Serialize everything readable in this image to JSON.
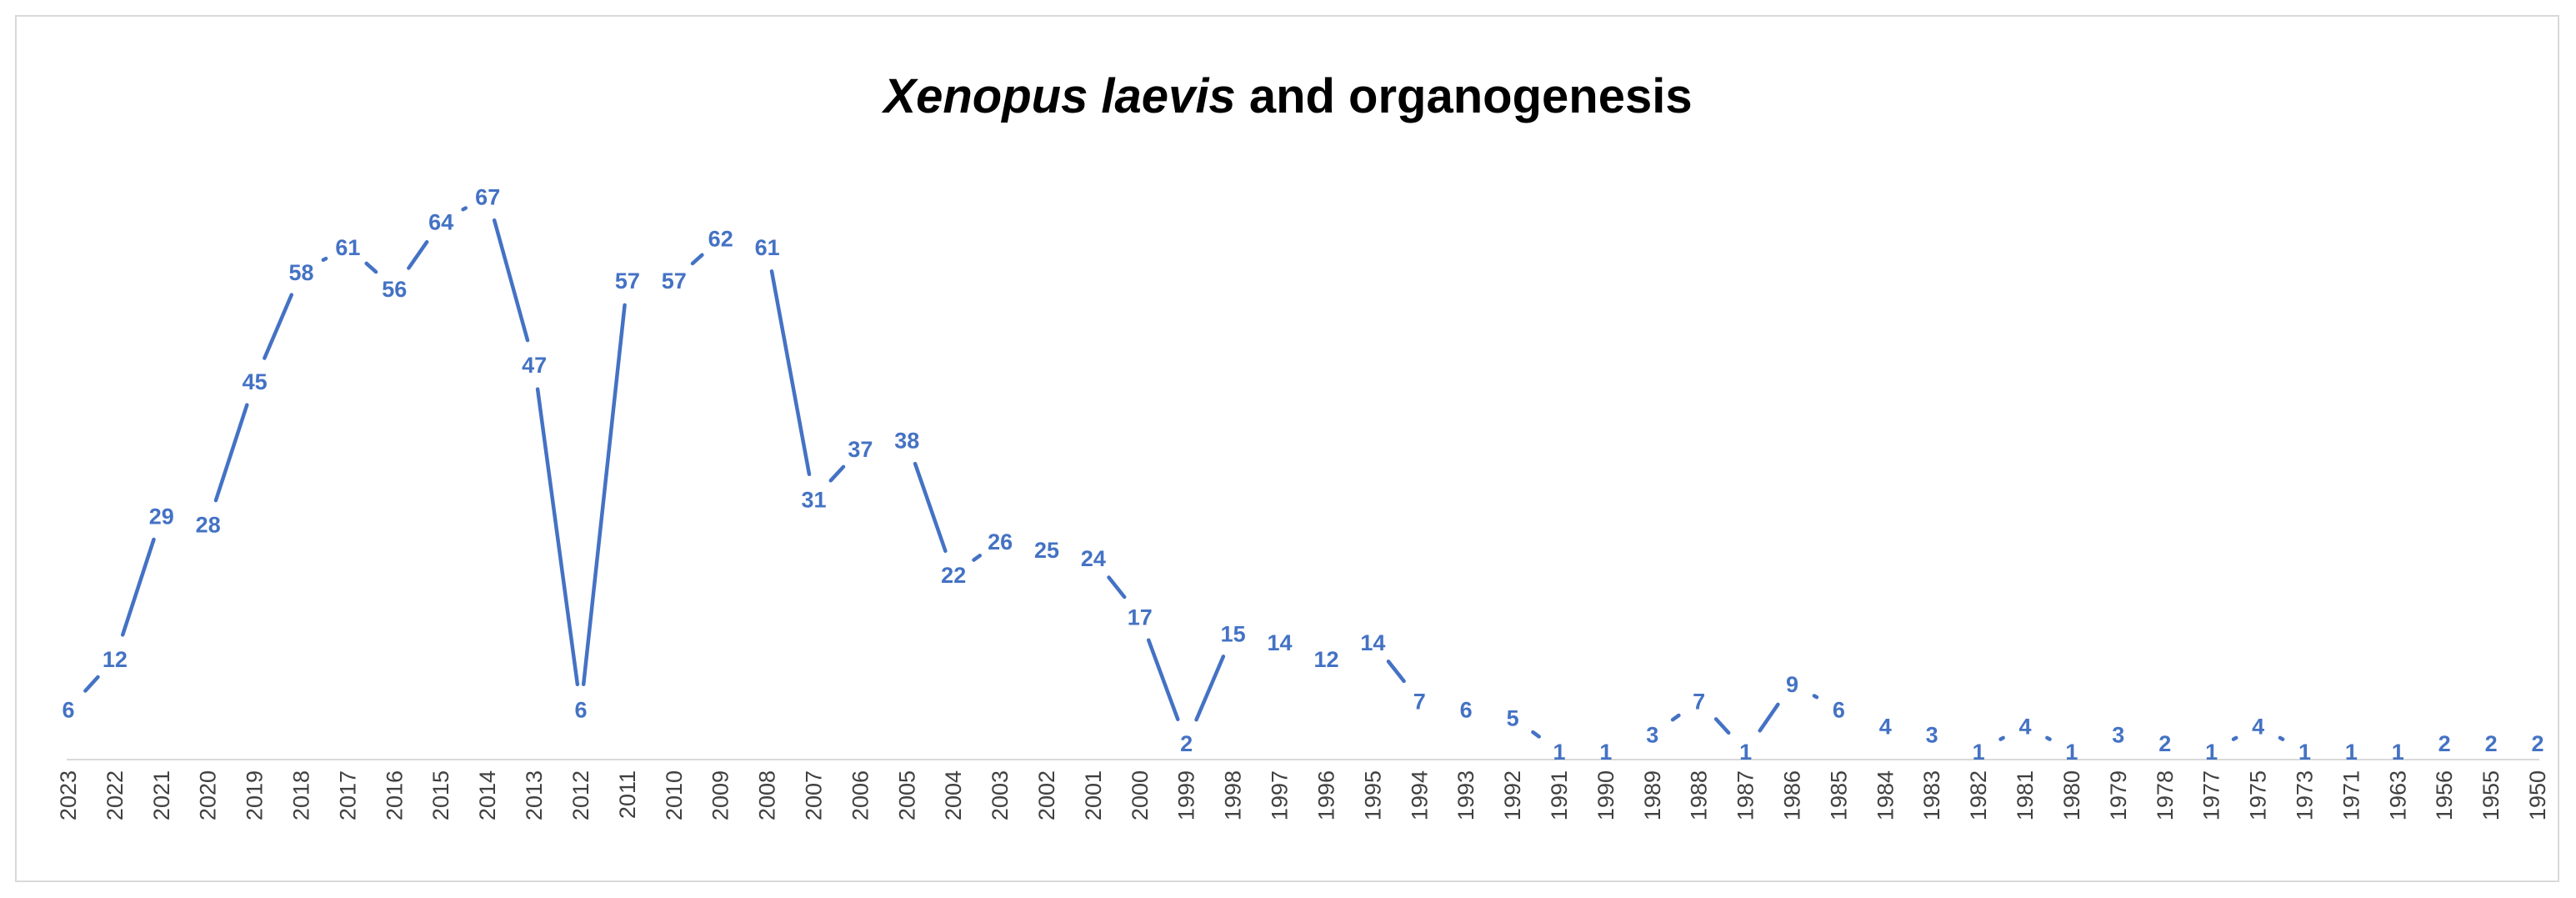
{
  "chart_data": {
    "type": "line",
    "title": {
      "italic": "Xenopus laevis",
      "rest": " and organogenesis"
    },
    "xlabel": "",
    "ylabel": "",
    "categories": [
      "2023",
      "2022",
      "2021",
      "2020",
      "2019",
      "2018",
      "2017",
      "2016",
      "2015",
      "2014",
      "2013",
      "2012",
      "2011",
      "2010",
      "2009",
      "2008",
      "2007",
      "2006",
      "2005",
      "2004",
      "2003",
      "2002",
      "2001",
      "2000",
      "1999",
      "1998",
      "1997",
      "1996",
      "1995",
      "1994",
      "1993",
      "1992",
      "1991",
      "1990",
      "1989",
      "1988",
      "1987",
      "1986",
      "1985",
      "1984",
      "1983",
      "1982",
      "1981",
      "1980",
      "1979",
      "1978",
      "1977",
      "1975",
      "1973",
      "1971",
      "1963",
      "1956",
      "1955",
      "1950"
    ],
    "values": [
      6,
      12,
      29,
      28,
      45,
      58,
      61,
      56,
      64,
      67,
      47,
      6,
      57,
      57,
      62,
      61,
      31,
      37,
      38,
      22,
      26,
      25,
      24,
      17,
      2,
      15,
      14,
      12,
      14,
      7,
      6,
      5,
      1,
      1,
      3,
      7,
      1,
      9,
      6,
      4,
      3,
      1,
      4,
      1,
      3,
      2,
      1,
      4,
      1,
      1,
      1,
      2,
      2,
      2
    ],
    "ylim": [
      0,
      70
    ],
    "grid": false,
    "legend": "none",
    "data_labels": true,
    "colors": {
      "line": "#4472C4",
      "label": "#4472C4",
      "axis": "#d9d9d9",
      "tick_text": "#404040",
      "border": "#d9d9d9"
    }
  }
}
